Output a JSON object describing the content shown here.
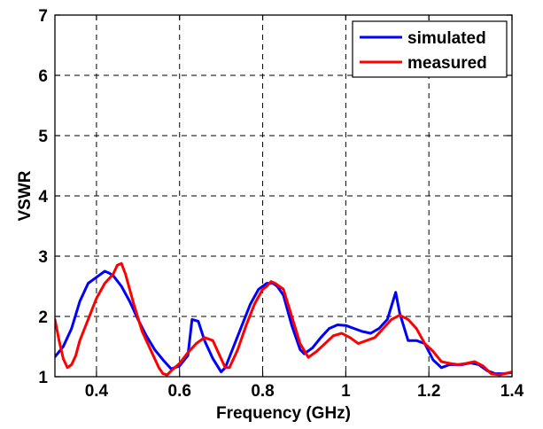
{
  "chart_data": {
    "type": "line",
    "xlabel": "Frequency (GHz)",
    "ylabel": "VSWR",
    "xlim": [
      0.3,
      1.4
    ],
    "ylim": [
      1,
      7
    ],
    "xticks": [
      0.4,
      0.6,
      0.8,
      1,
      1.2,
      1.4
    ],
    "xtick_labels": [
      "0.4",
      "0.6",
      "0.8",
      "1",
      "1.2",
      "1.4"
    ],
    "yticks": [
      1,
      2,
      3,
      4,
      5,
      6,
      7
    ],
    "ytick_labels": [
      "1",
      "2",
      "3",
      "4",
      "5",
      "6",
      "7"
    ],
    "grid": true,
    "legend_position": "top-right",
    "series": [
      {
        "name": "simulated",
        "color": "#0000ff",
        "x": [
          0.3,
          0.32,
          0.34,
          0.36,
          0.38,
          0.4,
          0.42,
          0.43,
          0.44,
          0.46,
          0.48,
          0.5,
          0.52,
          0.54,
          0.56,
          0.58,
          0.6,
          0.62,
          0.63,
          0.645,
          0.66,
          0.68,
          0.7,
          0.71,
          0.73,
          0.75,
          0.77,
          0.79,
          0.81,
          0.825,
          0.835,
          0.85,
          0.87,
          0.89,
          0.9,
          0.92,
          0.94,
          0.96,
          0.98,
          1.0,
          1.02,
          1.04,
          1.06,
          1.08,
          1.1,
          1.12,
          1.13,
          1.15,
          1.17,
          1.19,
          1.21,
          1.23,
          1.25,
          1.28,
          1.3,
          1.32,
          1.34,
          1.36,
          1.38,
          1.4
        ],
        "y": [
          1.33,
          1.5,
          1.8,
          2.25,
          2.55,
          2.65,
          2.75,
          2.72,
          2.68,
          2.5,
          2.25,
          1.95,
          1.68,
          1.45,
          1.28,
          1.13,
          1.18,
          1.35,
          1.95,
          1.92,
          1.6,
          1.3,
          1.08,
          1.15,
          1.5,
          1.85,
          2.2,
          2.45,
          2.55,
          2.55,
          2.5,
          2.35,
          1.85,
          1.45,
          1.38,
          1.48,
          1.65,
          1.8,
          1.86,
          1.85,
          1.8,
          1.75,
          1.72,
          1.8,
          1.95,
          2.4,
          2.05,
          1.6,
          1.6,
          1.55,
          1.28,
          1.15,
          1.2,
          1.2,
          1.23,
          1.2,
          1.1,
          1.05,
          1.05,
          1.07
        ]
      },
      {
        "name": "measured",
        "color": "#ff0000",
        "x": [
          0.3,
          0.31,
          0.32,
          0.33,
          0.34,
          0.35,
          0.36,
          0.38,
          0.4,
          0.42,
          0.44,
          0.45,
          0.46,
          0.47,
          0.49,
          0.51,
          0.53,
          0.55,
          0.56,
          0.57,
          0.58,
          0.6,
          0.62,
          0.64,
          0.66,
          0.68,
          0.7,
          0.71,
          0.72,
          0.74,
          0.76,
          0.78,
          0.8,
          0.81,
          0.82,
          0.83,
          0.85,
          0.87,
          0.89,
          0.91,
          0.93,
          0.95,
          0.97,
          0.99,
          1.01,
          1.03,
          1.05,
          1.07,
          1.09,
          1.11,
          1.13,
          1.15,
          1.17,
          1.19,
          1.21,
          1.23,
          1.25,
          1.27,
          1.29,
          1.31,
          1.33,
          1.35,
          1.37,
          1.4
        ],
        "y": [
          1.95,
          1.6,
          1.3,
          1.15,
          1.2,
          1.35,
          1.6,
          1.95,
          2.3,
          2.55,
          2.7,
          2.85,
          2.88,
          2.7,
          2.2,
          1.75,
          1.45,
          1.15,
          1.05,
          1.03,
          1.1,
          1.22,
          1.4,
          1.55,
          1.65,
          1.6,
          1.3,
          1.15,
          1.15,
          1.45,
          1.85,
          2.2,
          2.45,
          2.5,
          2.58,
          2.55,
          2.45,
          2.0,
          1.55,
          1.32,
          1.42,
          1.55,
          1.68,
          1.72,
          1.65,
          1.55,
          1.6,
          1.65,
          1.8,
          1.95,
          2.02,
          1.95,
          1.8,
          1.55,
          1.42,
          1.25,
          1.22,
          1.2,
          1.22,
          1.25,
          1.18,
          1.05,
          1.03,
          1.08
        ]
      }
    ]
  }
}
